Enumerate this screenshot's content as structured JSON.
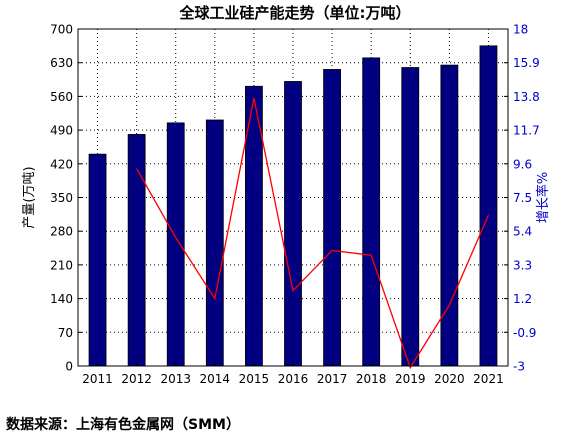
{
  "chart_data": {
    "type": "bar",
    "title": "全球工业硅产能走势（单位:万吨）",
    "categories": [
      "2011",
      "2012",
      "2013",
      "2014",
      "2015",
      "2016",
      "2017",
      "2018",
      "2019",
      "2020",
      "2021"
    ],
    "series": [
      {
        "type": "bar",
        "axis": "left",
        "color": "#000080",
        "values": [
          440,
          481,
          505,
          511,
          581,
          591,
          616,
          640,
          620,
          625,
          665
        ]
      },
      {
        "type": "line",
        "axis": "right",
        "color": "#ff0000",
        "values": [
          null,
          9.3,
          5.0,
          1.2,
          13.7,
          1.7,
          4.2,
          3.9,
          -3.1,
          0.8,
          6.4
        ]
      }
    ],
    "ylabel": "产量(万吨)",
    "y2label": "增长率%",
    "ylim": [
      0,
      700
    ],
    "y2lim": [
      -3,
      18
    ],
    "yticks": [
      "0",
      "70",
      "140",
      "210",
      "280",
      "350",
      "420",
      "490",
      "560",
      "630",
      "700"
    ],
    "y2ticks": [
      "-3",
      "-0.9",
      "1.2",
      "3.3",
      "5.4",
      "7.5",
      "9.6",
      "11.7",
      "13.8",
      "15.9",
      "18"
    ],
    "grid": true,
    "grid_style": "dotted"
  },
  "source": "数据来源：上海有色金属网（SMM）"
}
